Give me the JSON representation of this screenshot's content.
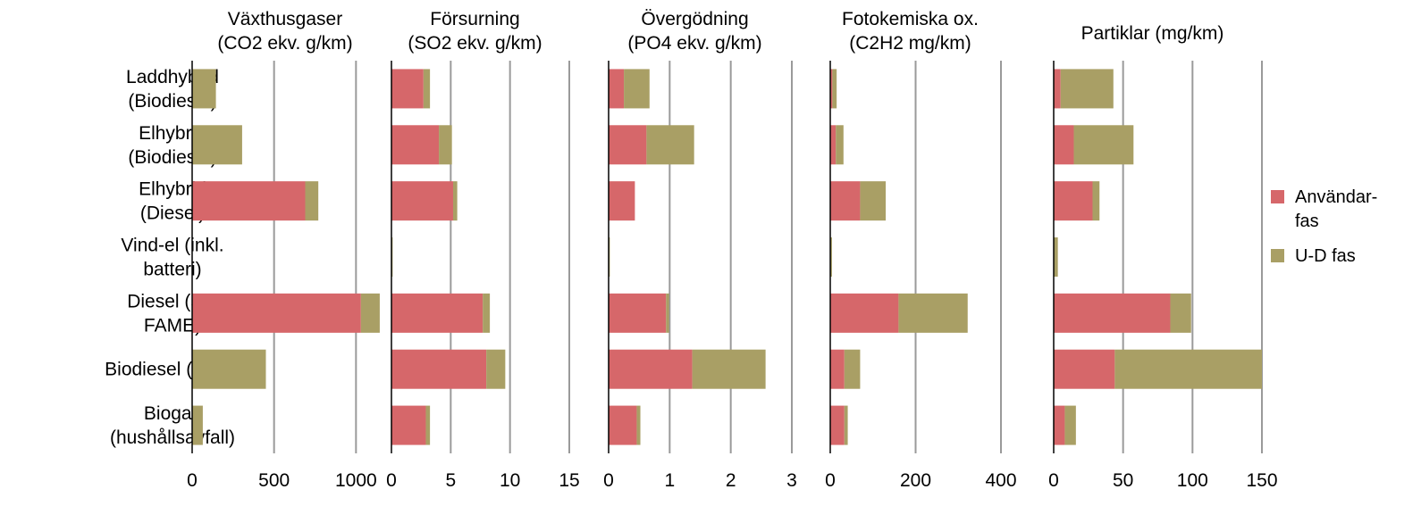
{
  "colors": {
    "use_phase": "#d6676a",
    "ud_phase": "#a99f65",
    "grid": "#9a9a9a",
    "axis": "#000000",
    "background": "#ffffff"
  },
  "legend": {
    "placement": "right",
    "entries": [
      {
        "series_index": 0,
        "lines": [
          "Användar-",
          "fas"
        ]
      },
      {
        "series_index": 1,
        "lines": [
          "U-D fas"
        ]
      }
    ]
  },
  "chart_data": {
    "type": "bar",
    "orientation": "horizontal",
    "stacked": true,
    "grid": true,
    "categories": [
      {
        "lines": [
          "Laddhybrid",
          "(Biodiesel)"
        ]
      },
      {
        "lines": [
          "Elhybrid",
          "(Biodiesel)"
        ]
      },
      {
        "lines": [
          "Elhybrid",
          "(Diesel)"
        ]
      },
      {
        "lines": [
          "Vind-el (inkl.",
          "batteri)"
        ]
      },
      {
        "lines": [
          "Diesel (5%",
          "FAME)"
        ]
      },
      {
        "lines": [
          "Biodiesel (RME)"
        ]
      },
      {
        "lines": [
          "Biogas",
          "(hushållsavfall)"
        ]
      }
    ],
    "series_names": [
      "Användar-fas",
      "U-D fas"
    ],
    "panels": [
      {
        "title_lines": [
          "Växthusgaser",
          "(CO2 ekv. g/km)"
        ],
        "xlim": [
          0,
          1200
        ],
        "ticks": [
          0,
          500,
          1000
        ],
        "tick_labels": [
          "0",
          "500",
          "1000"
        ],
        "series": [
          {
            "name": "Användar-fas",
            "values": [
              0,
              0,
              690,
              0,
              1030,
              0,
              0
            ]
          },
          {
            "name": "U-D fas",
            "values": [
              145,
              305,
              80,
              0,
              115,
              450,
              65
            ]
          }
        ]
      },
      {
        "title_lines": [
          "Försurning",
          "(SO2 ekv. g/km)"
        ],
        "xlim": [
          0,
          15
        ],
        "ticks": [
          0,
          5,
          10,
          15
        ],
        "tick_labels": [
          "0",
          "5",
          "10",
          "15"
        ],
        "series": [
          {
            "name": "Användar-fas",
            "values": [
              2.7,
              4.0,
              5.2,
              0.02,
              7.7,
              8.0,
              2.9
            ]
          },
          {
            "name": "U-D fas",
            "values": [
              0.55,
              1.1,
              0.35,
              0.08,
              0.6,
              1.6,
              0.35
            ]
          }
        ]
      },
      {
        "title_lines": [
          "Övergödning",
          "(PO4 ekv. g/km)"
        ],
        "xlim": [
          0,
          3
        ],
        "ticks": [
          0,
          1,
          2,
          3
        ],
        "tick_labels": [
          "0",
          "1",
          "2",
          "3"
        ],
        "series": [
          {
            "name": "Användar-fas",
            "values": [
              0.25,
              0.62,
              0.43,
              0.0,
              0.94,
              1.37,
              0.46
            ]
          },
          {
            "name": "U-D fas",
            "values": [
              0.42,
              0.78,
              0.0,
              0.02,
              0.05,
              1.2,
              0.06
            ]
          }
        ]
      },
      {
        "title_lines": [
          "Fotokemiska ox.",
          "(C2H2 mg/km)"
        ],
        "xlim": [
          0,
          400
        ],
        "ticks": [
          0,
          200,
          400
        ],
        "tick_labels": [
          "0",
          "200",
          "400"
        ],
        "series": [
          {
            "name": "Användar-fas",
            "values": [
              5,
              13,
              70,
              0,
              160,
              33,
              33
            ]
          },
          {
            "name": "U-D fas",
            "values": [
              10,
              18,
              60,
              4,
              162,
              37,
              8
            ]
          }
        ]
      },
      {
        "title_lines": [
          "Partiklar (mg/km)"
        ],
        "xlim": [
          0,
          150
        ],
        "ticks": [
          0,
          50,
          100,
          150
        ],
        "tick_labels": [
          "0",
          "50",
          "100",
          "150"
        ],
        "series": [
          {
            "name": "Användar-fas",
            "values": [
              5,
              14.5,
              28,
              0,
              84,
              44,
              8
            ]
          },
          {
            "name": "U-D fas",
            "values": [
              38,
              43,
              5,
              3,
              15,
              106,
              8
            ]
          }
        ]
      }
    ]
  }
}
